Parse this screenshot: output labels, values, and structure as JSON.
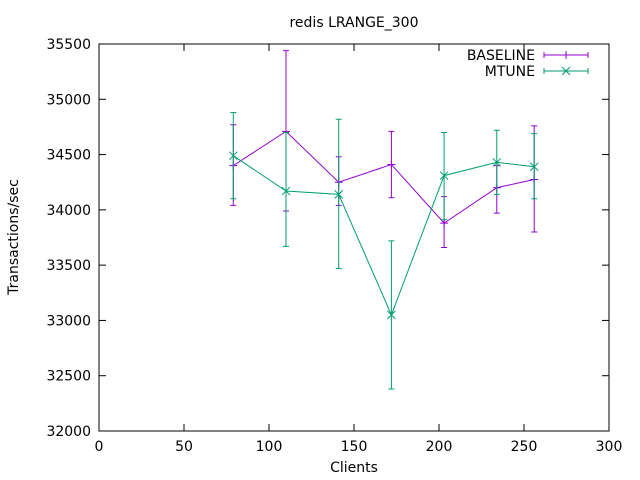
{
  "chart_data": {
    "type": "line",
    "title": "redis LRANGE_300",
    "xlabel": "Clients",
    "ylabel": "Transactions/sec",
    "xlim": [
      0,
      300
    ],
    "ylim": [
      32000,
      35500
    ],
    "xticks": [
      0,
      50,
      100,
      150,
      200,
      250,
      300
    ],
    "yticks": [
      32000,
      32500,
      33000,
      33500,
      34000,
      34500,
      35000,
      35500
    ],
    "grid": false,
    "legend_position": "top-right",
    "series": [
      {
        "name": "BASELINE",
        "color": "#9400d3",
        "marker": "plus",
        "x": [
          79,
          110,
          141,
          172,
          203,
          234,
          256
        ],
        "y": [
          34400,
          34710,
          34250,
          34410,
          33880,
          34200,
          34275
        ],
        "err_low": [
          34040,
          33990,
          34040,
          34110,
          33660,
          33970,
          33800
        ],
        "err_high": [
          34770,
          35440,
          34480,
          34710,
          34120,
          34400,
          34760
        ]
      },
      {
        "name": "MTUNE",
        "color": "#009e73",
        "marker": "cross",
        "x": [
          79,
          110,
          141,
          172,
          203,
          234,
          256
        ],
        "y": [
          34490,
          34170,
          34140,
          33050,
          34310,
          34430,
          34390
        ],
        "err_low": [
          34100,
          33670,
          33470,
          32380,
          33910,
          34140,
          34100
        ],
        "err_high": [
          34880,
          34700,
          34820,
          33720,
          34700,
          34720,
          34690
        ]
      }
    ]
  }
}
